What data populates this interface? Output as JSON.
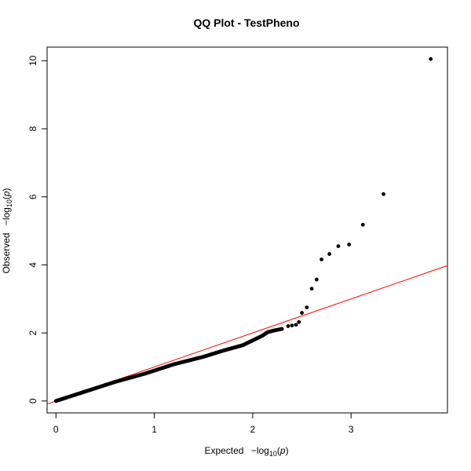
{
  "chart_data": {
    "type": "scatter",
    "title": "QQ Plot - TestPheno",
    "xlabel": {
      "prefix": "Expected",
      "minus_log": "−log",
      "base": "10",
      "open": "(",
      "var": "p",
      "close": ")"
    },
    "ylabel": {
      "prefix": "Observed",
      "minus_log": "−log",
      "base": "10",
      "open": "(",
      "var": "p",
      "close": ")"
    },
    "xlim": [
      -0.09,
      3.98
    ],
    "ylim": [
      -0.35,
      10.4
    ],
    "x_ticks": [
      0,
      1,
      2,
      3
    ],
    "y_ticks": [
      0,
      2,
      4,
      6,
      8,
      10
    ],
    "reference_line": {
      "slope": 1,
      "intercept": 0,
      "color": "#ff0000"
    },
    "point_color": "#000000",
    "bulk_curve": [
      [
        0.0,
        0.0
      ],
      [
        0.3,
        0.28
      ],
      [
        0.6,
        0.56
      ],
      [
        0.9,
        0.8
      ],
      [
        1.2,
        1.08
      ],
      [
        1.5,
        1.3
      ],
      [
        1.7,
        1.48
      ],
      [
        1.9,
        1.64
      ],
      [
        2.0,
        1.78
      ],
      [
        2.1,
        1.92
      ],
      [
        2.15,
        2.02
      ],
      [
        2.2,
        2.06
      ],
      [
        2.3,
        2.12
      ]
    ],
    "points": [
      {
        "x": 2.36,
        "y": 2.2
      },
      {
        "x": 2.4,
        "y": 2.22
      },
      {
        "x": 2.44,
        "y": 2.24
      },
      {
        "x": 2.47,
        "y": 2.32
      },
      {
        "x": 2.5,
        "y": 2.59
      },
      {
        "x": 2.55,
        "y": 2.75
      },
      {
        "x": 2.6,
        "y": 3.3
      },
      {
        "x": 2.65,
        "y": 3.57
      },
      {
        "x": 2.7,
        "y": 4.16
      },
      {
        "x": 2.78,
        "y": 4.32
      },
      {
        "x": 2.87,
        "y": 4.55
      },
      {
        "x": 2.98,
        "y": 4.6
      },
      {
        "x": 3.12,
        "y": 5.18
      },
      {
        "x": 3.33,
        "y": 6.08
      },
      {
        "x": 3.81,
        "y": 10.05
      }
    ]
  }
}
